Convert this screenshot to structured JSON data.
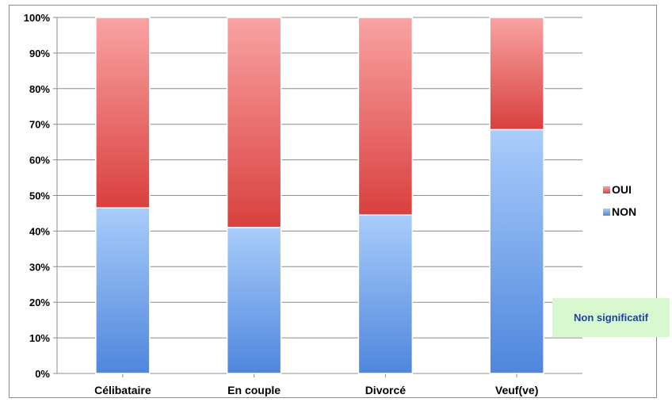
{
  "chart_data": {
    "type": "bar",
    "stacked": "percent",
    "categories": [
      "Célibataire",
      "En couple",
      "Divorcé",
      "Veuf(ve)"
    ],
    "series": [
      {
        "name": "NON",
        "values": [
          46.5,
          41,
          44.5,
          68.5
        ],
        "color": "#6f9fe6"
      },
      {
        "name": "OUI",
        "values": [
          53.5,
          59,
          55.5,
          31.5
        ],
        "color": "#e86a6a"
      }
    ],
    "ylim": [
      0,
      100
    ],
    "yticks": [
      "0%",
      "10%",
      "20%",
      "30%",
      "40%",
      "50%",
      "60%",
      "70%",
      "80%",
      "90%",
      "100%"
    ],
    "grid": true,
    "legend": {
      "position": "right",
      "entries": [
        "OUI",
        "NON"
      ]
    },
    "title": "",
    "xlabel": "",
    "ylabel": ""
  },
  "note": {
    "text": "Non significatif"
  }
}
